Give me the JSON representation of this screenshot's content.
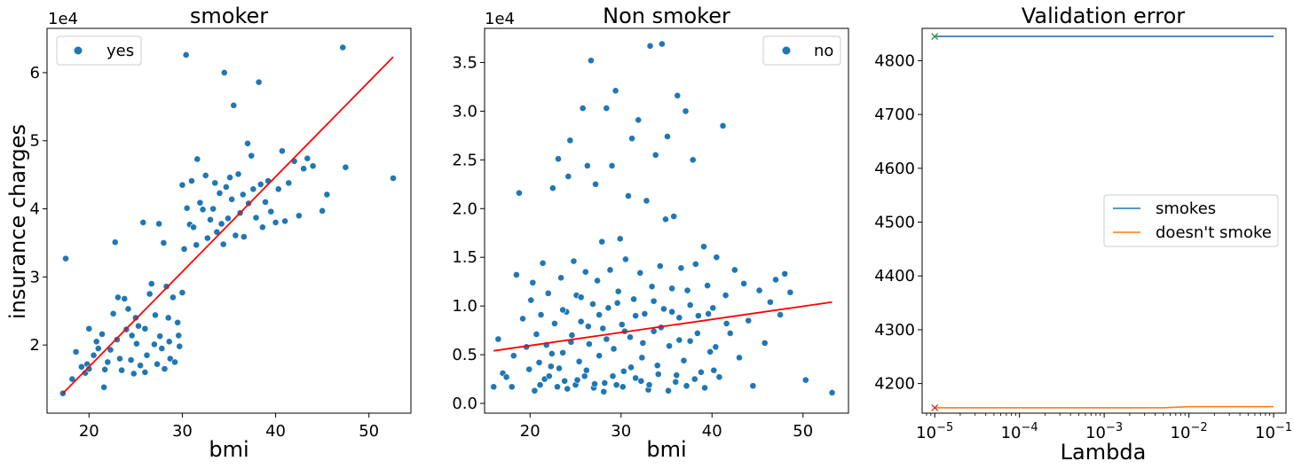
{
  "chart_data": [
    {
      "type": "scatter",
      "title": "smoker",
      "xlabel": "bmi",
      "ylabel": "insurance charges",
      "y_offset_label": "1e4",
      "xlim": [
        15.5,
        54.5
      ],
      "ylim": [
        10000,
        66500
      ],
      "xticks": [
        20,
        30,
        40,
        50
      ],
      "yticks": [
        20000,
        30000,
        40000,
        50000,
        60000
      ],
      "ytick_labels": [
        "2",
        "3",
        "4",
        "5",
        "6"
      ],
      "legend": {
        "label": "yes",
        "placement": "top-left"
      },
      "colors": {
        "points": "#1f77b4",
        "fit": "#ff0000"
      },
      "fit_line": {
        "x": [
          17.2,
          52.6
        ],
        "y": [
          12900,
          62300
        ]
      },
      "points": [
        [
          17.2,
          12900
        ],
        [
          17.5,
          32700
        ],
        [
          18.2,
          15000
        ],
        [
          18.6,
          19000
        ],
        [
          19.2,
          16800
        ],
        [
          19.6,
          15900
        ],
        [
          19.8,
          17200
        ],
        [
          20.0,
          16500
        ],
        [
          20.0,
          22400
        ],
        [
          20.5,
          18500
        ],
        [
          20.8,
          20500
        ],
        [
          21.0,
          19500
        ],
        [
          21.4,
          21600
        ],
        [
          21.6,
          13800
        ],
        [
          21.7,
          16400
        ],
        [
          22.0,
          17500
        ],
        [
          22.3,
          19300
        ],
        [
          22.6,
          24600
        ],
        [
          22.8,
          35100
        ],
        [
          23.0,
          20800
        ],
        [
          23.1,
          27000
        ],
        [
          23.3,
          18000
        ],
        [
          23.5,
          16300
        ],
        [
          23.8,
          26800
        ],
        [
          24.0,
          22300
        ],
        [
          24.2,
          25300
        ],
        [
          24.5,
          17800
        ],
        [
          24.6,
          21400
        ],
        [
          24.8,
          15800
        ],
        [
          25.0,
          24000
        ],
        [
          25.1,
          20200
        ],
        [
          25.3,
          22800
        ],
        [
          25.5,
          17000
        ],
        [
          25.8,
          38000
        ],
        [
          26.0,
          22400
        ],
        [
          26.2,
          18500
        ],
        [
          26.5,
          27500
        ],
        [
          26.7,
          29000
        ],
        [
          27.0,
          20100
        ],
        [
          27.1,
          24400
        ],
        [
          27.3,
          17200
        ],
        [
          27.5,
          37800
        ],
        [
          27.6,
          21300
        ],
        [
          27.8,
          19500
        ],
        [
          28.0,
          35000
        ],
        [
          28.1,
          16500
        ],
        [
          28.3,
          28600
        ],
        [
          28.5,
          24000
        ],
        [
          28.7,
          18000
        ],
        [
          29.0,
          27000
        ],
        [
          29.2,
          17500
        ],
        [
          29.5,
          23300
        ],
        [
          29.7,
          19800
        ],
        [
          30.0,
          27700
        ],
        [
          30.0,
          43500
        ],
        [
          30.2,
          34100
        ],
        [
          30.4,
          62600
        ],
        [
          30.5,
          40100
        ],
        [
          30.8,
          37700
        ],
        [
          31.0,
          44100
        ],
        [
          31.2,
          37300
        ],
        [
          31.5,
          34700
        ],
        [
          31.6,
          47300
        ],
        [
          31.9,
          40900
        ],
        [
          32.2,
          39900
        ],
        [
          32.5,
          44900
        ],
        [
          32.7,
          35700
        ],
        [
          33.0,
          38400
        ],
        [
          33.3,
          40000
        ],
        [
          33.5,
          43800
        ],
        [
          33.7,
          36600
        ],
        [
          34.0,
          42300
        ],
        [
          34.2,
          37800
        ],
        [
          34.4,
          34800
        ],
        [
          34.5,
          60000
        ],
        [
          34.7,
          43200
        ],
        [
          34.9,
          38600
        ],
        [
          35.1,
          44600
        ],
        [
          35.3,
          41400
        ],
        [
          35.5,
          55200
        ],
        [
          35.7,
          36100
        ],
        [
          36.0,
          45100
        ],
        [
          36.2,
          39400
        ],
        [
          36.5,
          42100
        ],
        [
          36.6,
          35900
        ],
        [
          37.0,
          49600
        ],
        [
          37.1,
          40800
        ],
        [
          37.4,
          47800
        ],
        [
          37.6,
          42900
        ],
        [
          37.9,
          38700
        ],
        [
          38.2,
          58600
        ],
        [
          38.4,
          43600
        ],
        [
          38.6,
          37300
        ],
        [
          38.9,
          41000
        ],
        [
          39.2,
          44100
        ],
        [
          39.5,
          39600
        ],
        [
          40.0,
          38000
        ],
        [
          40.3,
          42900
        ],
        [
          40.7,
          48500
        ],
        [
          41.0,
          38200
        ],
        [
          41.4,
          43800
        ],
        [
          42.0,
          47000
        ],
        [
          42.5,
          39000
        ],
        [
          43.0,
          45900
        ],
        [
          43.4,
          47400
        ],
        [
          44.0,
          46300
        ],
        [
          45.0,
          39700
        ],
        [
          45.5,
          42100
        ],
        [
          47.2,
          63700
        ],
        [
          47.5,
          46100
        ],
        [
          52.6,
          44500
        ],
        [
          26.0,
          16000
        ],
        [
          28.6,
          20500
        ],
        [
          29.6,
          21400
        ]
      ]
    },
    {
      "type": "scatter",
      "title": "Non smoker",
      "xlabel": "bmi",
      "ylabel": "",
      "y_offset_label": "1e4",
      "xlim": [
        15.0,
        55.0
      ],
      "ylim": [
        -1000,
        38500
      ],
      "xticks": [
        20,
        30,
        40,
        50
      ],
      "yticks": [
        0,
        5000,
        10000,
        15000,
        20000,
        25000,
        30000,
        35000
      ],
      "ytick_labels": [
        "0.0",
        "0.5",
        "1.0",
        "1.5",
        "2.0",
        "2.5",
        "3.0",
        "3.5"
      ],
      "legend": {
        "label": "no",
        "placement": "top-right"
      },
      "colors": {
        "points": "#1f77b4",
        "fit": "#ff0000"
      },
      "fit_line": {
        "x": [
          16.0,
          53.2
        ],
        "y": [
          5400,
          10400
        ]
      },
      "points": [
        [
          16.0,
          1700
        ],
        [
          16.5,
          6600
        ],
        [
          17.0,
          3100
        ],
        [
          17.4,
          2700
        ],
        [
          18.0,
          1700
        ],
        [
          18.2,
          4900
        ],
        [
          18.5,
          13200
        ],
        [
          18.8,
          21600
        ],
        [
          19.2,
          8700
        ],
        [
          19.6,
          5800
        ],
        [
          19.9,
          3500
        ],
        [
          20.1,
          10600
        ],
        [
          20.3,
          12400
        ],
        [
          20.5,
          1300
        ],
        [
          20.7,
          7100
        ],
        [
          21.0,
          4200
        ],
        [
          21.2,
          9100
        ],
        [
          21.4,
          14400
        ],
        [
          21.6,
          2500
        ],
        [
          21.8,
          6000
        ],
        [
          22.0,
          11300
        ],
        [
          22.3,
          3800
        ],
        [
          22.5,
          22100
        ],
        [
          22.7,
          8200
        ],
        [
          23.0,
          1700
        ],
        [
          23.1,
          25100
        ],
        [
          23.4,
          12900
        ],
        [
          23.6,
          5200
        ],
        [
          23.8,
          2300
        ],
        [
          24.0,
          9400
        ],
        [
          24.2,
          23300
        ],
        [
          24.4,
          27000
        ],
        [
          24.6,
          7000
        ],
        [
          24.8,
          14600
        ],
        [
          25.0,
          1900
        ],
        [
          25.1,
          11100
        ],
        [
          25.4,
          4300
        ],
        [
          25.6,
          8400
        ],
        [
          25.8,
          30300
        ],
        [
          26.0,
          2800
        ],
        [
          26.1,
          13500
        ],
        [
          26.3,
          24400
        ],
        [
          26.5,
          6100
        ],
        [
          26.7,
          35200
        ],
        [
          26.9,
          10200
        ],
        [
          27.0,
          1600
        ],
        [
          27.2,
          22500
        ],
        [
          27.4,
          12600
        ],
        [
          27.6,
          4900
        ],
        [
          27.9,
          16600
        ],
        [
          28.0,
          7700
        ],
        [
          28.2,
          2100
        ],
        [
          28.4,
          30300
        ],
        [
          28.6,
          9800
        ],
        [
          28.8,
          13700
        ],
        [
          29.0,
          24400
        ],
        [
          29.2,
          5600
        ],
        [
          29.4,
          32100
        ],
        [
          29.5,
          1900
        ],
        [
          29.7,
          11500
        ],
        [
          29.9,
          16900
        ],
        [
          30.1,
          8100
        ],
        [
          30.3,
          3300
        ],
        [
          30.5,
          14800
        ],
        [
          30.8,
          21300
        ],
        [
          31.0,
          6800
        ],
        [
          31.2,
          27200
        ],
        [
          31.4,
          10700
        ],
        [
          31.6,
          2600
        ],
        [
          31.9,
          29100
        ],
        [
          32.1,
          13400
        ],
        [
          32.3,
          4700
        ],
        [
          32.6,
          9200
        ],
        [
          32.8,
          20800
        ],
        [
          33.0,
          1400
        ],
        [
          33.2,
          36700
        ],
        [
          33.4,
          12000
        ],
        [
          33.6,
          7400
        ],
        [
          33.8,
          25500
        ],
        [
          34.0,
          3900
        ],
        [
          34.3,
          14100
        ],
        [
          34.5,
          36900
        ],
        [
          34.7,
          9700
        ],
        [
          34.9,
          18900
        ],
        [
          35.1,
          27400
        ],
        [
          35.3,
          5900
        ],
        [
          35.6,
          11800
        ],
        [
          35.8,
          19200
        ],
        [
          36.0,
          2200
        ],
        [
          36.2,
          31600
        ],
        [
          36.4,
          8800
        ],
        [
          36.6,
          13900
        ],
        [
          36.9,
          4400
        ],
        [
          37.1,
          30000
        ],
        [
          37.3,
          11600
        ],
        [
          37.6,
          6400
        ],
        [
          37.9,
          25000
        ],
        [
          38.2,
          14300
        ],
        [
          38.5,
          9000
        ],
        [
          38.8,
          3200
        ],
        [
          39.1,
          16100
        ],
        [
          39.5,
          12100
        ],
        [
          39.8,
          5300
        ],
        [
          40.1,
          9800
        ],
        [
          40.5,
          15000
        ],
        [
          40.8,
          2700
        ],
        [
          41.2,
          28500
        ],
        [
          41.5,
          11100
        ],
        [
          42.0,
          7200
        ],
        [
          42.5,
          13700
        ],
        [
          43.0,
          4700
        ],
        [
          43.5,
          12300
        ],
        [
          44.0,
          8500
        ],
        [
          44.5,
          1800
        ],
        [
          45.2,
          11600
        ],
        [
          45.8,
          6200
        ],
        [
          46.4,
          10400
        ],
        [
          47.0,
          12700
        ],
        [
          47.5,
          9100
        ],
        [
          48.0,
          13300
        ],
        [
          48.6,
          11400
        ],
        [
          50.3,
          2400
        ],
        [
          53.2,
          1100
        ],
        [
          21.1,
          1900
        ],
        [
          22.1,
          2800
        ],
        [
          23.2,
          3600
        ],
        [
          24.1,
          1500
        ],
        [
          25.2,
          2400
        ],
        [
          26.2,
          3400
        ],
        [
          27.1,
          2000
        ],
        [
          28.1,
          1200
        ],
        [
          29.1,
          2800
        ],
        [
          30.2,
          1700
        ],
        [
          31.1,
          3700
        ],
        [
          32.2,
          2300
        ],
        [
          33.1,
          1900
        ],
        [
          34.1,
          3000
        ],
        [
          35.2,
          1300
        ],
        [
          36.1,
          2900
        ],
        [
          37.2,
          1800
        ],
        [
          38.1,
          2500
        ],
        [
          39.2,
          1600
        ],
        [
          40.2,
          3400
        ],
        [
          24.5,
          6300
        ],
        [
          26.4,
          7900
        ],
        [
          28.4,
          6600
        ],
        [
          30.4,
          7400
        ],
        [
          32.4,
          6200
        ],
        [
          34.4,
          7800
        ],
        [
          36.4,
          6500
        ],
        [
          38.4,
          7200
        ],
        [
          22.4,
          5100
        ],
        [
          40.4,
          5800
        ],
        [
          25.6,
          10900
        ],
        [
          27.6,
          9100
        ],
        [
          29.6,
          10300
        ],
        [
          31.6,
          9000
        ],
        [
          33.6,
          10500
        ],
        [
          35.6,
          9400
        ],
        [
          37.6,
          10100
        ],
        [
          23.6,
          9600
        ],
        [
          39.6,
          9200
        ],
        [
          41.6,
          8200
        ]
      ]
    },
    {
      "type": "line",
      "title": "Validation error",
      "xlabel": "Lambda",
      "ylabel": "",
      "x_scale": "log",
      "xlim": [
        7.1e-06,
        0.14
      ],
      "ylim": [
        4145,
        4860
      ],
      "xticks": [
        1e-05,
        0.0001,
        0.001,
        0.01,
        0.1
      ],
      "xtick_base": "10",
      "xtick_exponents": [
        "−5",
        "−4",
        "−3",
        "−2",
        "−1"
      ],
      "yticks": [
        4200,
        4300,
        4400,
        4500,
        4600,
        4700,
        4800
      ],
      "ytick_labels": [
        "4200",
        "4300",
        "4400",
        "4500",
        "4600",
        "4700",
        "4800"
      ],
      "legend": {
        "placement": "center-right"
      },
      "series": [
        {
          "name": "smokes",
          "color": "#1f77b4",
          "x": [
            1e-05,
            0.0001,
            0.001,
            0.01,
            0.1
          ],
          "y": [
            4845,
            4845,
            4845,
            4845,
            4845
          ],
          "best_marker": {
            "x": 1e-05,
            "y": 4845,
            "color": "#2ca02c"
          }
        },
        {
          "name": "doesn't smoke",
          "color": "#ff7f0e",
          "x": [
            1e-05,
            0.0001,
            0.001,
            0.005,
            0.01,
            0.1
          ],
          "y": [
            4155,
            4155,
            4155,
            4155,
            4157,
            4157
          ],
          "best_marker": {
            "x": 1e-05,
            "y": 4155,
            "color": "#d62728"
          }
        }
      ]
    }
  ]
}
